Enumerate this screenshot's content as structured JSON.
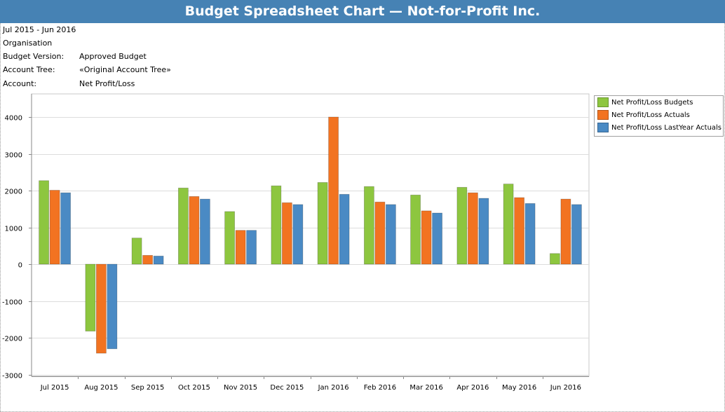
{
  "title": "Budget Spreadsheet Chart — Not-for-Profit Inc.",
  "period": "Jul 2015 - Jun 2016",
  "organisation": "Organisation",
  "fields": [
    {
      "label": "Budget Version:",
      "value": "Approved Budget"
    },
    {
      "label": "Account Tree:",
      "value": "«Original Account Tree»"
    },
    {
      "label": "Account:",
      "value": "Net Profit/Loss"
    }
  ],
  "colors": {
    "budgets": "#8dc63f",
    "actuals": "#f27321",
    "lastyear": "#4a8ac4",
    "header": "#4682b4"
  },
  "chart_data": {
    "type": "bar",
    "categories": [
      "Jul 2015",
      "Aug 2015",
      "Sep 2015",
      "Oct 2015",
      "Nov 2015",
      "Dec 2015",
      "Jan 2016",
      "Feb 2016",
      "Mar 2016",
      "Apr 2016",
      "May 2016",
      "Jun 2016"
    ],
    "series": [
      {
        "name": "Net Profit/Loss Budgets",
        "color": "#8dc63f",
        "values": [
          2270,
          -1820,
          710,
          2070,
          1430,
          2130,
          2220,
          2110,
          1880,
          2090,
          2180,
          290
        ]
      },
      {
        "name": "Net Profit/Loss Actuals",
        "color": "#f27321",
        "values": [
          2010,
          -2420,
          240,
          1840,
          920,
          1670,
          4000,
          1690,
          1450,
          1940,
          1810,
          1770
        ]
      },
      {
        "name": "Net Profit/Loss LastYear Actuals",
        "color": "#4a8ac4",
        "values": [
          1940,
          -2300,
          220,
          1770,
          920,
          1620,
          1900,
          1620,
          1390,
          1790,
          1650,
          1620
        ]
      }
    ],
    "ylim": [
      -3000,
      4500
    ],
    "yticks": [
      -3000,
      -2000,
      -1000,
      0,
      1000,
      2000,
      3000,
      4000
    ],
    "grid": true,
    "legend": "top-right"
  }
}
